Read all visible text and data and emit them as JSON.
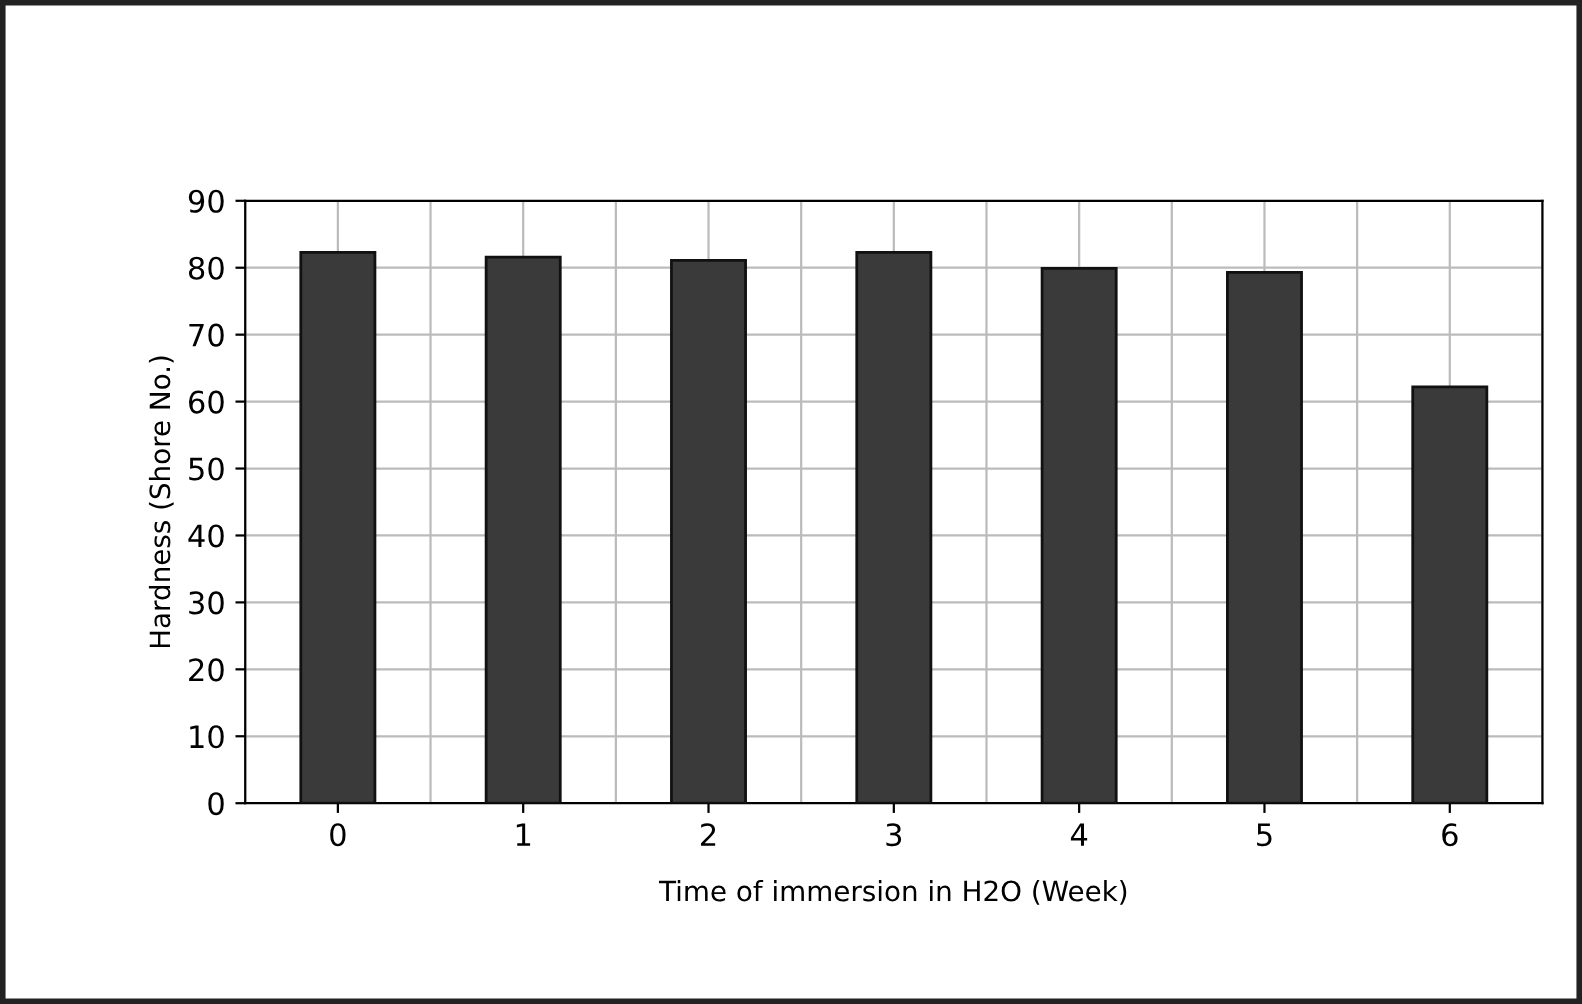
{
  "chart_data": {
    "type": "bar",
    "xlabel": "Time of immersion in H2O (Week)",
    "ylabel": "Hardness (Shore No.)",
    "categories": [
      "0",
      "1",
      "2",
      "3",
      "4",
      "5",
      "6"
    ],
    "values": [
      82.3,
      81.6,
      81.1,
      82.3,
      79.9,
      79.3,
      62.2
    ],
    "color": "#3a3a3a",
    "ylim": [
      0,
      90
    ],
    "yticks": [
      0,
      10,
      20,
      30,
      40,
      50,
      60,
      70,
      80,
      90
    ],
    "grid": true
  }
}
